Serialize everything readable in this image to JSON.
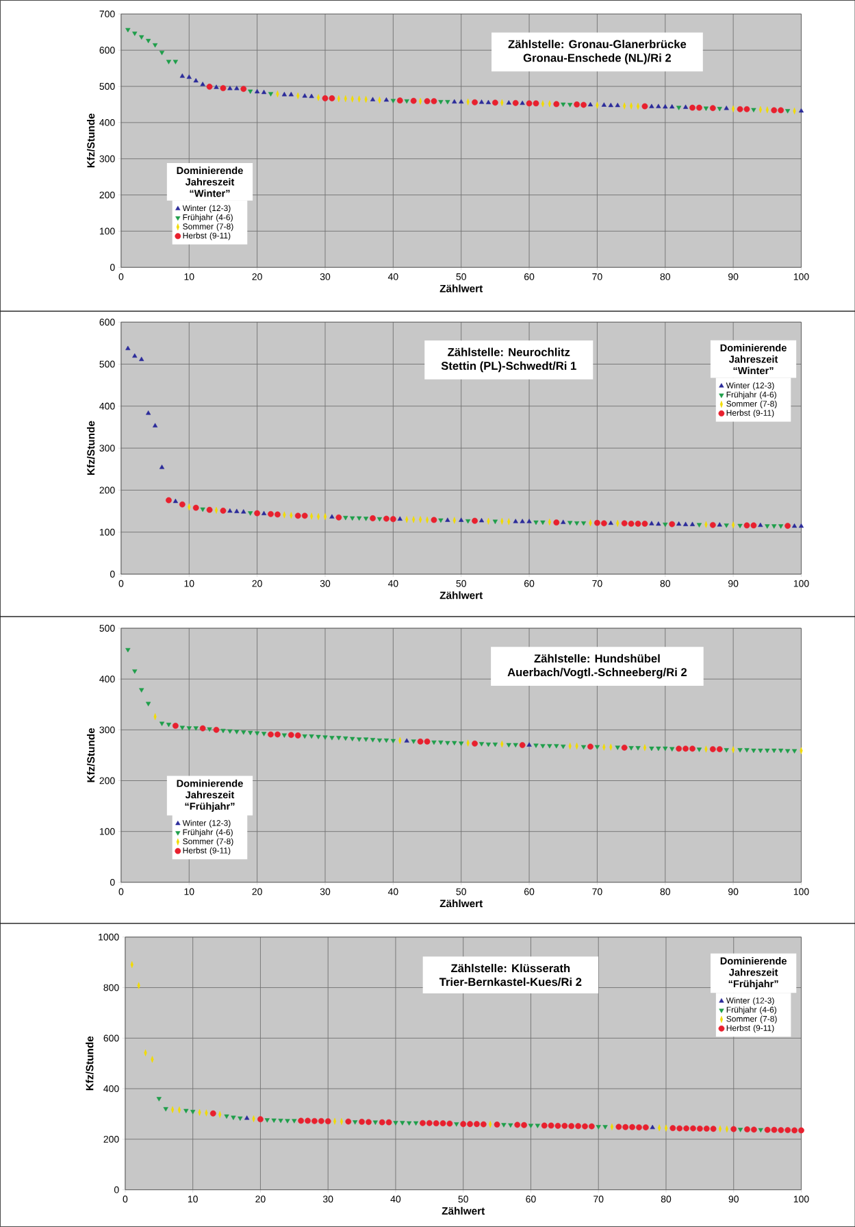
{
  "chart_data": [
    {
      "type": "scatter",
      "title": "Zählstelle: Gronau-Glanerbrücke",
      "subtitle": "Gronau-Enschede (NL)/Ri 2",
      "xlabel": "Zählwert",
      "ylabel": "Kfz/Stunde",
      "legend_title": "Dominierende Jahreszeit “Winter”",
      "legend": "bottom left",
      "grid": true,
      "xlim": [
        0,
        100
      ],
      "xticks": [
        0,
        10,
        20,
        30,
        40,
        50,
        60,
        70,
        80,
        90,
        100
      ],
      "ylim": [
        0,
        700
      ],
      "yticks": [
        0,
        100,
        200,
        300,
        400,
        500,
        600,
        700
      ],
      "series": [
        {
          "name": "Winter (12-3)",
          "color": "#2b2b9a",
          "marker": "triangle",
          "x": [
            9,
            10,
            11,
            12,
            14,
            16,
            17,
            20,
            21,
            24,
            25,
            27,
            28,
            37,
            39,
            49,
            50,
            53,
            54,
            57,
            59,
            69,
            71,
            72,
            73,
            78,
            79,
            80,
            81,
            83,
            89,
            100
          ],
          "values": [
            528,
            525,
            515,
            505,
            497,
            494,
            494,
            485,
            483,
            477,
            477,
            473,
            472,
            463,
            462,
            457,
            457,
            456,
            455,
            454,
            453,
            449,
            448,
            447,
            447,
            444,
            444,
            443,
            443,
            442,
            439,
            432
          ]
        },
        {
          "name": "Frühjahr (4-6)",
          "color": "#1e9e4a",
          "marker": "triangle-down",
          "x": [
            1,
            2,
            3,
            4,
            5,
            6,
            7,
            8,
            19,
            22,
            40,
            42,
            47,
            48,
            65,
            66,
            82,
            86,
            88,
            93,
            98
          ],
          "values": [
            657,
            647,
            637,
            627,
            615,
            594,
            569,
            569,
            487,
            480,
            461,
            460,
            458,
            458,
            451,
            450,
            442,
            440,
            439,
            436,
            433
          ]
        },
        {
          "name": "Sommer (7-8)",
          "color": "#f2dc00",
          "marker": "diamond",
          "x": [
            23,
            26,
            29,
            32,
            33,
            34,
            35,
            36,
            38,
            44,
            51,
            56,
            62,
            63,
            70,
            74,
            75,
            76,
            90,
            94,
            95,
            99
          ],
          "values": [
            479,
            474,
            469,
            466,
            466,
            465,
            465,
            464,
            462,
            459,
            457,
            455,
            452,
            452,
            448,
            446,
            446,
            445,
            438,
            436,
            435,
            432
          ]
        },
        {
          "name": "Herbst (9-11)",
          "color": "#e8202e",
          "marker": "circle",
          "x": [
            13,
            15,
            18,
            30,
            31,
            41,
            43,
            45,
            46,
            52,
            55,
            58,
            60,
            61,
            64,
            67,
            68,
            77,
            84,
            85,
            87,
            91,
            92,
            96,
            97
          ],
          "values": [
            499,
            495,
            493,
            467,
            467,
            461,
            460,
            459,
            459,
            456,
            455,
            454,
            453,
            453,
            451,
            450,
            449,
            445,
            441,
            441,
            440,
            437,
            437,
            434,
            434
          ]
        }
      ]
    },
    {
      "type": "scatter",
      "title": "Zählstelle: Neurochlitz",
      "subtitle": "Stettin (PL)-Schwedt/Ri 1",
      "xlabel": "Zählwert",
      "ylabel": "Kfz/Stunde",
      "legend_title": "Dominierende Jahreszeit “Winter”",
      "legend": "top right",
      "grid": true,
      "xlim": [
        0,
        100
      ],
      "xticks": [
        0,
        10,
        20,
        30,
        40,
        50,
        60,
        70,
        80,
        90,
        100
      ],
      "ylim": [
        0,
        600
      ],
      "yticks": [
        0,
        100,
        200,
        300,
        400,
        500,
        600
      ],
      "series": [
        {
          "name": "Winter (12-3)",
          "color": "#2b2b9a",
          "marker": "triangle",
          "x": [
            1,
            2,
            3,
            4,
            5,
            6,
            8,
            16,
            17,
            18,
            21,
            31,
            41,
            48,
            50,
            53,
            58,
            59,
            60,
            65,
            72,
            78,
            79,
            82,
            83,
            84,
            88,
            94,
            99,
            100
          ],
          "values": [
            537,
            519,
            511,
            383,
            353,
            254,
            173,
            150,
            149,
            148,
            144,
            136,
            131,
            128,
            128,
            127,
            125,
            125,
            125,
            123,
            121,
            120,
            119,
            119,
            118,
            118,
            117,
            116,
            114,
            114
          ]
        },
        {
          "name": "Frühjahr (4-6)",
          "color": "#1e9e4a",
          "marker": "triangle-down",
          "x": [
            12,
            19,
            33,
            34,
            35,
            36,
            38,
            47,
            51,
            55,
            61,
            62,
            66,
            67,
            68,
            80,
            85,
            89,
            91,
            95,
            96,
            97
          ],
          "values": [
            155,
            146,
            135,
            134,
            134,
            133,
            132,
            129,
            127,
            126,
            124,
            124,
            123,
            122,
            122,
            119,
            118,
            117,
            116,
            115,
            115,
            115
          ]
        },
        {
          "name": "Sommer (7-8)",
          "color": "#f2dc00",
          "marker": "diamond",
          "x": [
            10,
            14,
            24,
            25,
            28,
            29,
            30,
            42,
            43,
            44,
            45,
            49,
            54,
            56,
            57,
            63,
            69,
            73,
            86,
            90
          ],
          "values": [
            160,
            152,
            141,
            140,
            138,
            137,
            137,
            130,
            130,
            130,
            129,
            128,
            126,
            126,
            125,
            124,
            122,
            121,
            118,
            117
          ]
        },
        {
          "name": "Herbst (9-11)",
          "color": "#e8202e",
          "marker": "circle",
          "x": [
            7,
            9,
            11,
            13,
            15,
            20,
            22,
            23,
            26,
            27,
            32,
            37,
            39,
            40,
            46,
            52,
            64,
            70,
            71,
            74,
            75,
            76,
            77,
            81,
            87,
            92,
            93,
            98
          ],
          "values": [
            176,
            166,
            158,
            153,
            151,
            145,
            143,
            142,
            139,
            139,
            135,
            133,
            132,
            131,
            129,
            127,
            123,
            122,
            121,
            121,
            120,
            120,
            120,
            119,
            117,
            116,
            116,
            115
          ]
        }
      ]
    },
    {
      "type": "scatter",
      "title": "Zählstelle: Hundshübel",
      "subtitle": "Auerbach/Vogtl.-Schneeberg/Ri 2",
      "xlabel": "Zählwert",
      "ylabel": "Kfz/Stunde",
      "legend_title": "Dominierende Jahreszeit “Frühjahr”",
      "legend": "bottom left",
      "grid": true,
      "xlim": [
        0,
        100
      ],
      "xticks": [
        0,
        10,
        20,
        30,
        40,
        50,
        60,
        70,
        80,
        90,
        100
      ],
      "ylim": [
        0,
        500
      ],
      "yticks": [
        0,
        100,
        200,
        300,
        400,
        500
      ],
      "series": [
        {
          "name": "Winter (12-3)",
          "color": "#2b2b9a",
          "marker": "triangle",
          "x": [
            42,
            60
          ],
          "values": [
            278,
            270
          ]
        },
        {
          "name": "Frühjahr (4-6)",
          "color": "#1e9e4a",
          "marker": "triangle-down",
          "x": [
            1,
            2,
            3,
            4,
            6,
            7,
            9,
            10,
            11,
            13,
            15,
            16,
            17,
            18,
            19,
            20,
            21,
            24,
            27,
            28,
            29,
            30,
            31,
            32,
            33,
            34,
            35,
            36,
            37,
            38,
            39,
            40,
            43,
            46,
            47,
            48,
            49,
            50,
            53,
            54,
            55,
            57,
            58,
            61,
            62,
            63,
            64,
            65,
            68,
            70,
            73,
            75,
            76,
            78,
            79,
            80,
            81,
            85,
            89,
            91,
            92,
            93,
            94,
            95,
            96,
            97,
            98,
            99
          ],
          "values": [
            458,
            416,
            379,
            352,
            313,
            311,
            305,
            304,
            304,
            302,
            299,
            298,
            297,
            296,
            295,
            294,
            293,
            290,
            288,
            288,
            287,
            286,
            285,
            285,
            284,
            283,
            282,
            282,
            281,
            280,
            280,
            279,
            278,
            276,
            276,
            275,
            275,
            274,
            273,
            272,
            272,
            271,
            271,
            270,
            269,
            269,
            269,
            268,
            267,
            267,
            266,
            265,
            265,
            264,
            264,
            264,
            263,
            262,
            261,
            261,
            261,
            260,
            260,
            260,
            260,
            260,
            259,
            259
          ]
        },
        {
          "name": "Sommer (7-8)",
          "color": "#f2dc00",
          "marker": "diamond",
          "x": [
            5,
            41,
            51,
            56,
            66,
            67,
            71,
            72,
            77,
            86,
            90,
            100
          ],
          "values": [
            326,
            279,
            274,
            272,
            268,
            268,
            266,
            266,
            265,
            262,
            261,
            259
          ]
        },
        {
          "name": "Herbst (9-11)",
          "color": "#e8202e",
          "marker": "circle",
          "x": [
            8,
            12,
            14,
            22,
            23,
            25,
            26,
            44,
            45,
            52,
            59,
            69,
            74,
            82,
            83,
            84,
            87,
            88
          ],
          "values": [
            308,
            303,
            300,
            291,
            291,
            290,
            289,
            277,
            277,
            273,
            270,
            267,
            265,
            263,
            263,
            263,
            262,
            262
          ]
        }
      ]
    },
    {
      "type": "scatter",
      "title": "Zählstelle: Klüsserath",
      "subtitle": "Trier-Bernkastel-Kues/Ri 2",
      "xlabel": "Zählwert",
      "ylabel": "Kfz/Stunde",
      "legend_title": "Dominierende Jahreszeit “Frühjahr”",
      "legend": "top right",
      "grid": true,
      "xlim": [
        0,
        100
      ],
      "xticks": [
        0,
        10,
        20,
        30,
        40,
        50,
        60,
        70,
        80,
        90,
        100
      ],
      "ylim": [
        0,
        1000
      ],
      "yticks": [
        0,
        200,
        400,
        600,
        800,
        1000
      ],
      "series": [
        {
          "name": "Winter (12-3)",
          "color": "#2b2b9a",
          "marker": "triangle",
          "x": [
            18,
            78
          ],
          "values": [
            283,
            246
          ]
        },
        {
          "name": "Frühjahr (4-6)",
          "color": "#1e9e4a",
          "marker": "triangle-down",
          "x": [
            5,
            6,
            9,
            10,
            15,
            16,
            17,
            21,
            22,
            23,
            24,
            25,
            34,
            37,
            40,
            41,
            42,
            43,
            49,
            56,
            57,
            60,
            61,
            70,
            71,
            91,
            94
          ],
          "values": [
            361,
            321,
            314,
            310,
            292,
            287,
            284,
            277,
            276,
            275,
            274,
            274,
            269,
            268,
            266,
            266,
            265,
            265,
            261,
            258,
            257,
            255,
            255,
            250,
            250,
            239,
            238
          ]
        },
        {
          "name": "Sommer (7-8)",
          "color": "#f2dc00",
          "marker": "diamond",
          "x": [
            1,
            2,
            3,
            4,
            7,
            8,
            11,
            12,
            14,
            19,
            31,
            32,
            54,
            72,
            79,
            80,
            88,
            89
          ],
          "values": [
            891,
            808,
            542,
            516,
            317,
            316,
            306,
            304,
            298,
            281,
            271,
            270,
            259,
            249,
            245,
            244,
            241,
            240
          ]
        },
        {
          "name": "Herbst (9-11)",
          "color": "#e8202e",
          "marker": "circle",
          "x": [
            13,
            20,
            26,
            27,
            28,
            29,
            30,
            33,
            35,
            36,
            38,
            39,
            44,
            45,
            46,
            47,
            48,
            50,
            51,
            52,
            53,
            55,
            58,
            59,
            62,
            63,
            64,
            65,
            66,
            67,
            68,
            69,
            73,
            74,
            75,
            76,
            77,
            81,
            82,
            83,
            84,
            85,
            86,
            87,
            90,
            92,
            93,
            95,
            96,
            97,
            98,
            99,
            100
          ],
          "values": [
            302,
            279,
            273,
            273,
            272,
            272,
            271,
            270,
            269,
            268,
            267,
            267,
            264,
            264,
            263,
            263,
            262,
            260,
            260,
            260,
            259,
            258,
            257,
            256,
            254,
            254,
            253,
            253,
            252,
            252,
            251,
            251,
            249,
            248,
            248,
            247,
            247,
            244,
            243,
            243,
            243,
            242,
            242,
            241,
            240,
            239,
            238,
            237,
            237,
            236,
            236,
            235,
            235
          ]
        }
      ]
    }
  ]
}
